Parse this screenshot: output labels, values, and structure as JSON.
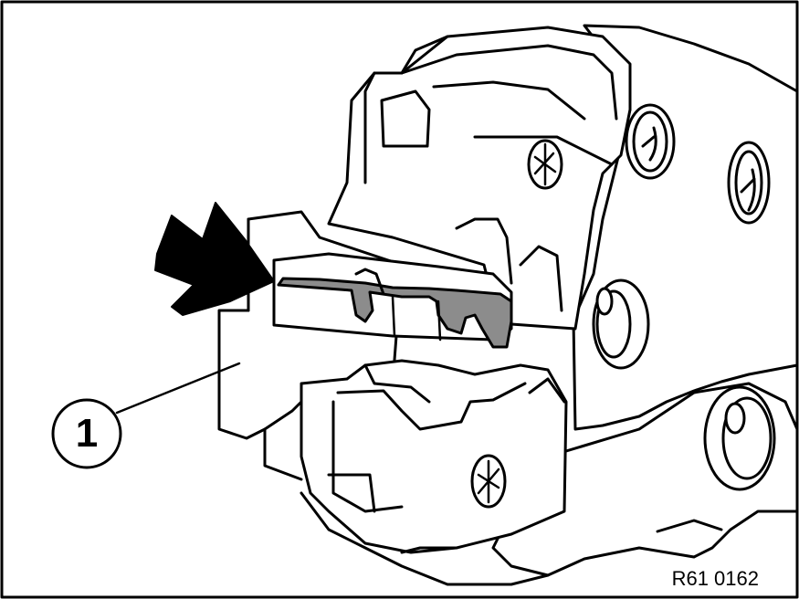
{
  "figure": {
    "callout": {
      "number": "1"
    },
    "reference_code": "R61 0162",
    "colors": {
      "line": "#000000",
      "background": "#ffffff",
      "highlight": "#8c8c8c"
    },
    "icons": {
      "pointer": "arrow-icon",
      "part": "crimping-die-insert"
    }
  }
}
